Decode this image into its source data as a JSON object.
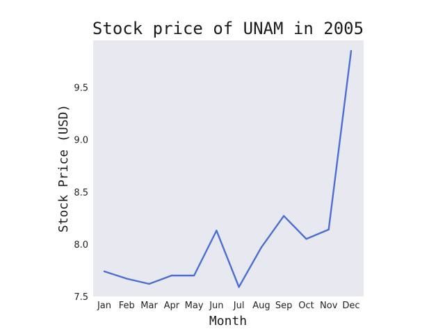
{
  "chart_data": {
    "type": "line",
    "title": "Stock price of UNAM in 2005",
    "xlabel": "Month",
    "ylabel": "Stock Price (USD)",
    "categories": [
      "Jan",
      "Feb",
      "Mar",
      "Apr",
      "May",
      "Jun",
      "Jul",
      "Aug",
      "Sep",
      "Oct",
      "Nov",
      "Dec"
    ],
    "series": [
      {
        "values": [
          7.74,
          7.67,
          7.62,
          7.7,
          7.7,
          8.13,
          7.59,
          7.97,
          8.27,
          8.05,
          8.14,
          9.85
        ]
      }
    ],
    "ylim": [
      7.5,
      9.95
    ],
    "yticks": [
      "7.5",
      "8.0",
      "8.5",
      "9.0",
      "9.5"
    ],
    "grid": false,
    "colors": {
      "line": "#4a6fd1",
      "plot_bg": "#e8e8f1"
    }
  }
}
